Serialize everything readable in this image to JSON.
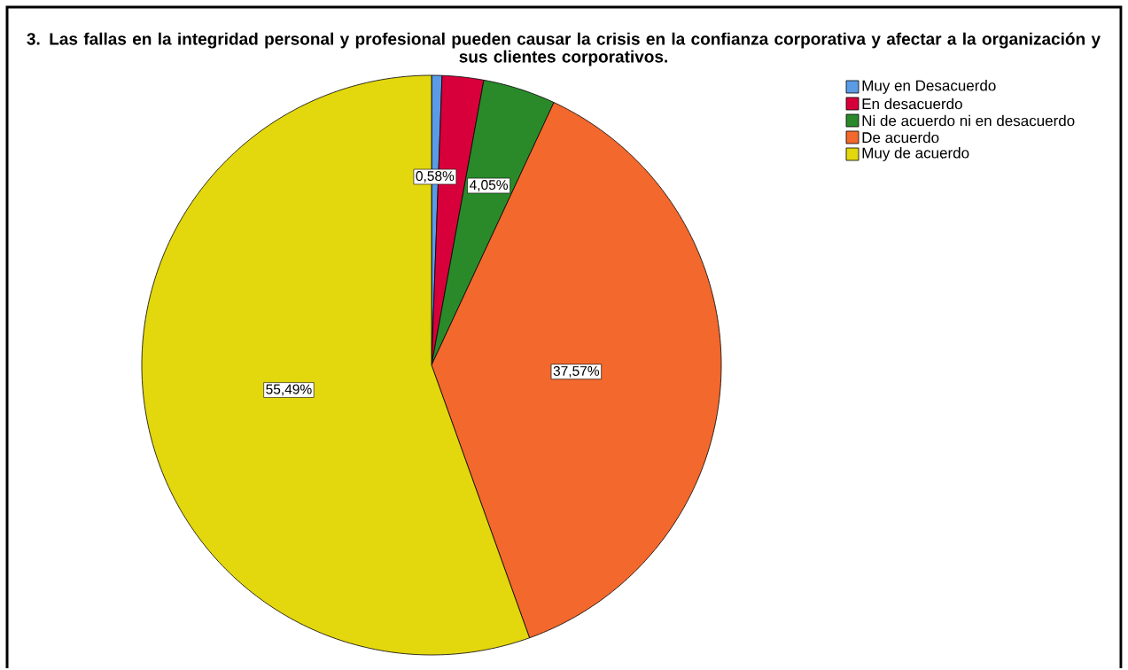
{
  "chart_data": {
    "type": "pie",
    "title": "3. Las fallas en la integridad personal y profesional pueden causar la crisis en la confianza corporativa y afectar a la organización y sus clientes corporativos.",
    "categories": [
      "Muy en Desacuerdo",
      "En desacuerdo",
      "Ni de acuerdo ni en desacuerdo",
      "De acuerdo",
      "Muy de acuerdo"
    ],
    "values": [
      0.58,
      2.31,
      4.05,
      37.57,
      55.49
    ],
    "colors": [
      "#5b9be6",
      "#d8003a",
      "#2a8a2a",
      "#f3682c",
      "#e3d70e"
    ],
    "value_labels": [
      "0,58%",
      null,
      "4,05%",
      "37,57%",
      "55,49%"
    ],
    "legend": "top right"
  }
}
